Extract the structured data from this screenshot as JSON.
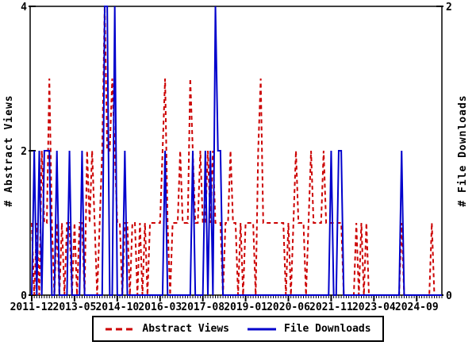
{
  "page": {
    "background": "#ffffff"
  },
  "chart_data": {
    "type": "line",
    "title": "",
    "x_axis": {
      "start": "2011-12",
      "end": "2025-07",
      "n_months": 164,
      "label_every_months": 17,
      "tick_labels": [
        "2011-12",
        "2013-05",
        "2014-10",
        "2016-03",
        "2017-08",
        "2019-01",
        "2020-06",
        "2021-11",
        "2023-04",
        "2024-09"
      ]
    },
    "left_axis": {
      "label": "# Abstract Views",
      "range": [
        0,
        4
      ],
      "ticks": [
        0,
        2,
        4
      ]
    },
    "right_axis": {
      "label": "# File Downloads",
      "range": [
        0,
        2
      ],
      "ticks": [
        0,
        2
      ]
    },
    "grid": "off",
    "legend_position": "bottom-center",
    "series": [
      {
        "name": "Abstract Views",
        "color": "#cc0000",
        "style": "dashed",
        "axis": "left",
        "values": [
          1,
          0,
          1,
          0,
          2,
          1,
          1,
          3,
          1,
          0,
          1,
          0,
          1,
          0,
          1,
          1,
          0,
          1,
          0,
          1,
          1,
          0,
          2,
          1,
          2,
          1,
          0,
          1,
          2,
          4,
          2,
          2,
          3,
          2,
          1,
          1,
          0,
          1,
          1,
          0,
          1,
          1,
          0,
          1,
          0,
          1,
          0,
          1,
          1,
          1,
          1,
          1,
          2,
          3,
          1,
          0,
          1,
          1,
          1,
          2,
          1,
          1,
          1,
          3,
          2,
          1,
          1,
          2,
          1,
          1,
          2,
          1,
          2,
          1,
          1,
          1,
          0,
          1,
          1,
          2,
          1,
          1,
          0,
          1,
          0,
          1,
          1,
          1,
          1,
          0,
          2,
          3,
          1,
          1,
          1,
          1,
          1,
          1,
          1,
          1,
          1,
          0,
          1,
          0,
          1,
          2,
          1,
          1,
          1,
          0,
          1,
          2,
          1,
          1,
          1,
          1,
          2,
          1,
          1,
          1,
          1,
          1,
          1,
          1,
          0,
          0,
          0,
          0,
          0,
          1,
          0,
          1,
          0,
          1,
          0,
          0,
          0,
          0,
          0,
          0,
          0,
          0,
          0,
          0,
          0,
          0,
          0,
          1,
          0,
          0,
          0,
          0,
          0,
          0,
          0,
          0,
          0,
          0,
          0,
          1,
          0,
          0,
          0,
          0
        ]
      },
      {
        "name": "File Downloads",
        "color": "#0000cc",
        "style": "solid",
        "axis": "right",
        "values": [
          0,
          1,
          0,
          1,
          0,
          1,
          1,
          1,
          0,
          0,
          1,
          0,
          0,
          0,
          0,
          1,
          0,
          0,
          0,
          0,
          1,
          0,
          0,
          0,
          0,
          0,
          0,
          0,
          0,
          2,
          2,
          0,
          0,
          2,
          0,
          0,
          0,
          1,
          0,
          0,
          0,
          0,
          0,
          0,
          0,
          0,
          0,
          0,
          0,
          0,
          0,
          0,
          0,
          1,
          0,
          0,
          0,
          0,
          0,
          0,
          0,
          0,
          0,
          0,
          1,
          0,
          0,
          0,
          0,
          1,
          0,
          1,
          0,
          2,
          1,
          1,
          0,
          0,
          0,
          0,
          0,
          0,
          0,
          0,
          0,
          0,
          0,
          0,
          0,
          0,
          0,
          0,
          0,
          0,
          0,
          0,
          0,
          0,
          0,
          0,
          0,
          0,
          0,
          0,
          0,
          0,
          0,
          0,
          0,
          0,
          0,
          0,
          0,
          0,
          0,
          0,
          0,
          0,
          0,
          1,
          0,
          0,
          1,
          1,
          0,
          0,
          0,
          0,
          0,
          0,
          0,
          0,
          0,
          0,
          0,
          0,
          0,
          0,
          0,
          0,
          0,
          0,
          0,
          0,
          0,
          0,
          0,
          1,
          0,
          0,
          0,
          0,
          0,
          0,
          0,
          0,
          0,
          0,
          0,
          0,
          0,
          0,
          0,
          0
        ]
      }
    ]
  },
  "legend": {
    "items": [
      {
        "label": "Abstract Views",
        "sample": "dashed-red-line"
      },
      {
        "label": "File Downloads",
        "sample": "solid-blue-line"
      }
    ]
  }
}
